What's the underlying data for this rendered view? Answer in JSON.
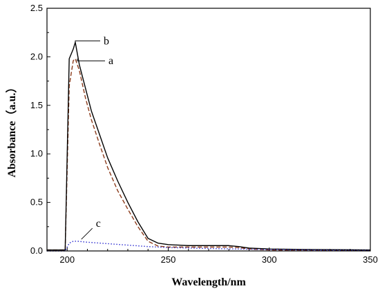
{
  "chart_data": {
    "type": "line",
    "xlabel": "Wavelength/nm",
    "ylabel": "Absorbance（a.u.）",
    "xlim": [
      190,
      350
    ],
    "ylim": [
      0,
      2.5
    ],
    "x_ticks": [
      200,
      250,
      300,
      350
    ],
    "y_ticks": [
      0.0,
      0.5,
      1.0,
      1.5,
      2.0,
      2.5
    ],
    "grid": false,
    "series": [
      {
        "name": "a",
        "color": "#8b3a1a",
        "style": "dashed",
        "x": [
          190,
          199,
          201,
          203,
          204,
          206,
          209,
          212,
          216,
          220,
          225,
          230,
          235,
          240,
          245,
          250,
          260,
          270,
          280,
          285,
          290,
          300,
          320,
          350
        ],
        "y": [
          0.01,
          0.01,
          1.7,
          1.96,
          1.98,
          1.86,
          1.58,
          1.35,
          1.1,
          0.86,
          0.62,
          0.43,
          0.25,
          0.1,
          0.05,
          0.04,
          0.04,
          0.04,
          0.04,
          0.035,
          0.02,
          0.01,
          0.005,
          0.005
        ]
      },
      {
        "name": "b",
        "color": "#000000",
        "style": "solid",
        "x": [
          190,
          199,
          201,
          203,
          204,
          206,
          209,
          212,
          216,
          220,
          225,
          230,
          235,
          240,
          245,
          250,
          260,
          270,
          280,
          285,
          290,
          300,
          320,
          350
        ],
        "y": [
          0.01,
          0.01,
          1.98,
          2.08,
          2.15,
          1.92,
          1.68,
          1.44,
          1.2,
          0.96,
          0.72,
          0.5,
          0.3,
          0.13,
          0.08,
          0.065,
          0.055,
          0.055,
          0.055,
          0.045,
          0.03,
          0.02,
          0.015,
          0.01
        ]
      },
      {
        "name": "c",
        "color": "#2a2ad0",
        "style": "dotted",
        "x": [
          190,
          199,
          201,
          203,
          205,
          210,
          220,
          230,
          240,
          250,
          270,
          290,
          310,
          330,
          350
        ],
        "y": [
          0.0,
          0.0,
          0.08,
          0.1,
          0.1,
          0.09,
          0.075,
          0.06,
          0.045,
          0.035,
          0.025,
          0.018,
          0.012,
          0.008,
          0.005
        ]
      }
    ],
    "annotations": [
      {
        "text": "b",
        "x": 204,
        "y": 2.15
      },
      {
        "text": "a",
        "x": 205,
        "y": 1.98
      },
      {
        "text": "c",
        "x": 207,
        "y": 0.12
      }
    ]
  }
}
